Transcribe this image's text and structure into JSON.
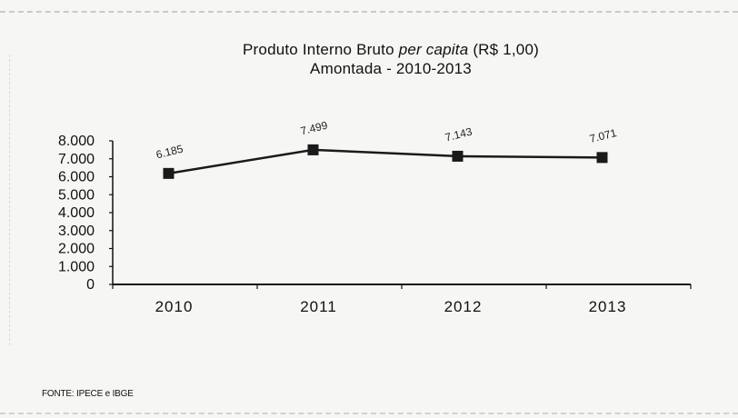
{
  "title_line1_prefix": "Produto Interno Bruto",
  "title_line1_italic": "per capita",
  "title_line1_suffix": "(R$ 1,00)",
  "title_line2": "Amontada - 2010-2013",
  "source": "FONTE: IPECE e IBGE",
  "chart_data": {
    "type": "line",
    "title": "Produto Interno Bruto per capita (R$ 1,00) Amontada - 2010-2013",
    "categories": [
      "2010",
      "2011",
      "2012",
      "2013"
    ],
    "series": [
      {
        "values": [
          6185,
          7499,
          7143,
          7071
        ]
      }
    ],
    "data_labels": [
      "6.185",
      "7.499",
      "7.143",
      "7.071"
    ],
    "yticks": [
      "0",
      "1.000",
      "2.000",
      "3.000",
      "4.000",
      "5.000",
      "6.000",
      "7.000",
      "8.000"
    ],
    "ylim": [
      0,
      8000
    ],
    "grid": false,
    "legend": "none",
    "marker": "square",
    "line_color": "#1a1a1a"
  }
}
